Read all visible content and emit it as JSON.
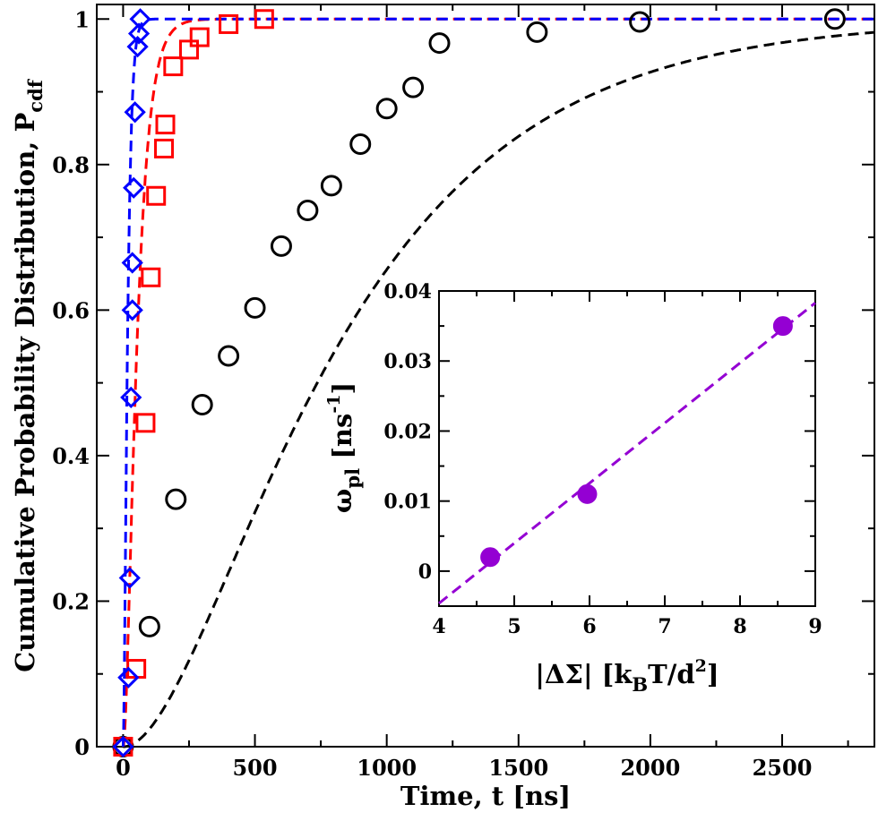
{
  "chart_data": [
    {
      "type": "scatter",
      "xlabel": "Time, t [ns]",
      "ylabel": "Cumulative Probability Distribution, P",
      "ylabel_sub": "cdf",
      "xlim": [
        -100,
        2850
      ],
      "ylim": [
        0,
        1.02
      ],
      "xticks": [
        0,
        500,
        1000,
        1500,
        2000,
        2500
      ],
      "xtick_labels": [
        "0",
        "500",
        "1000",
        "1500",
        "2000",
        "2500"
      ],
      "yticks": [
        0,
        0.2,
        0.4,
        0.6,
        0.8,
        1
      ],
      "ytick_labels": [
        "0",
        "0.2",
        "0.4",
        "0.6",
        "0.8",
        "1"
      ],
      "series": [
        {
          "name": "black-circles",
          "marker": "circle",
          "color": "#000000",
          "fit_tau": 590,
          "fit_offset": 30,
          "x": [
            0,
            100,
            200,
            300,
            400,
            500,
            600,
            700,
            790,
            900,
            1000,
            1100,
            1200,
            1570,
            1960,
            2700
          ],
          "y": [
            0.0,
            0.165,
            0.34,
            0.47,
            0.537,
            0.603,
            0.688,
            0.737,
            0.771,
            0.828,
            0.877,
            0.906,
            0.967,
            0.982,
            0.996,
            1.0
          ]
        },
        {
          "name": "red-squares",
          "marker": "square",
          "color": "#ff0000",
          "fit_tau": 38,
          "fit_offset": 60,
          "x": [
            0,
            50,
            85,
            105,
            125,
            155,
            160,
            190,
            250,
            290,
            400,
            535
          ],
          "y": [
            0.0,
            0.107,
            0.445,
            0.645,
            0.757,
            0.822,
            0.855,
            0.935,
            0.958,
            0.975,
            0.993,
            1.0
          ]
        },
        {
          "name": "blue-diamonds",
          "marker": "diamond",
          "color": "#0000ff",
          "fit_tau": 12,
          "fit_offset": 20,
          "x": [
            0,
            20,
            25,
            30,
            35,
            35,
            40,
            45,
            55,
            60,
            65
          ],
          "y": [
            0.0,
            0.095,
            0.232,
            0.48,
            0.6,
            0.665,
            0.768,
            0.872,
            0.962,
            0.98,
            1.0
          ]
        }
      ]
    },
    {
      "type": "scatter",
      "xlabel": "|ΔΣ| [k",
      "xlabel_sub": "B",
      "xlabel_rest": "T/d",
      "xlabel_sup": "2",
      "xlabel_end": "]",
      "ylabel": "ω",
      "ylabel_sub": "pl",
      "ylabel_rest": " [ns",
      "ylabel_sup": "-1",
      "ylabel_end": "]",
      "xlim": [
        4,
        9
      ],
      "ylim": [
        -0.005,
        0.04
      ],
      "xticks": [
        4,
        5,
        6,
        7,
        8,
        9
      ],
      "xtick_labels": [
        "4",
        "5",
        "6",
        "7",
        "8",
        "9"
      ],
      "yticks": [
        0,
        0.01,
        0.02,
        0.03,
        0.04
      ],
      "ytick_labels": [
        "0",
        "0.01",
        "0.02",
        "0.03",
        "0.04"
      ],
      "color": "#9400d3",
      "x": [
        4.68,
        5.97,
        8.57
      ],
      "y": [
        0.002,
        0.011,
        0.035
      ],
      "fit_line": {
        "x": [
          4.0,
          9.0
        ],
        "y": [
          -0.0046,
          0.0383
        ]
      }
    }
  ]
}
